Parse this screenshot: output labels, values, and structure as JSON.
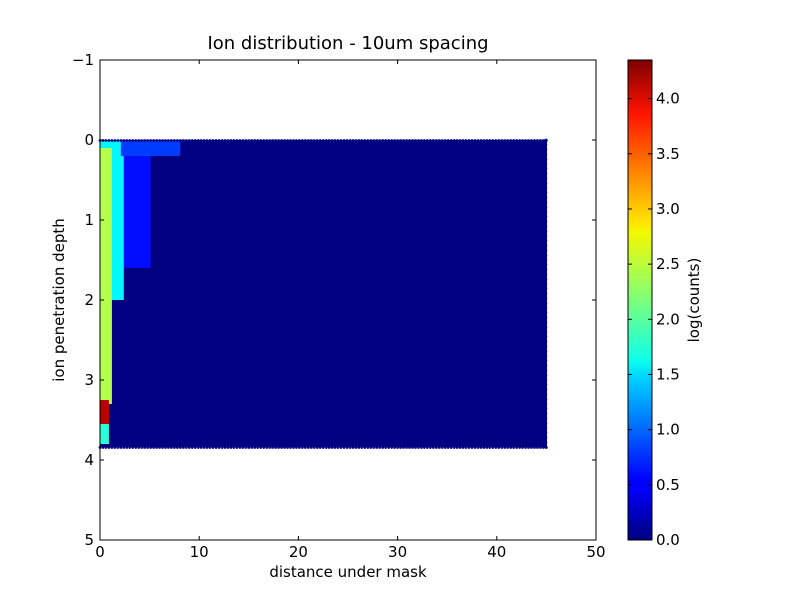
{
  "chart_data": {
    "type": "heatmap",
    "subtype": "hexbin",
    "title": "Ion distribution - 10um spacing",
    "xlabel": "distance under mask",
    "ylabel": "ion penetration depth",
    "xlim": [
      0,
      50
    ],
    "ylim": [
      -1,
      5
    ],
    "y_inverted": true,
    "grid": false,
    "x_ticks": [
      0,
      10,
      20,
      30,
      40,
      50
    ],
    "x_tick_labels": [
      "0",
      "10",
      "20",
      "30",
      "40",
      "50"
    ],
    "y_ticks": [
      -1,
      0,
      1,
      2,
      3,
      4,
      5
    ],
    "y_tick_labels": [
      "−1",
      "0",
      "1",
      "2",
      "3",
      "4",
      "5"
    ],
    "data_extent": {
      "x": [
        0,
        45
      ],
      "y": [
        0,
        3.85
      ]
    },
    "colorbar": {
      "label": "log(counts)",
      "colormap": "jet",
      "vmin": 0.0,
      "vmax": 4.35,
      "ticks": [
        0.0,
        0.5,
        1.0,
        1.5,
        2.0,
        2.5,
        3.0,
        3.5,
        4.0
      ],
      "tick_labels": [
        "0.0",
        "0.5",
        "1.0",
        "1.5",
        "2.0",
        "2.5",
        "3.0",
        "3.5",
        "4.0"
      ]
    },
    "regions": [
      {
        "x": [
          0,
          45
        ],
        "y": [
          0,
          3.85
        ],
        "value": 0.0
      },
      {
        "x": [
          0,
          2
        ],
        "y": [
          0,
          0.25
        ],
        "value": 1.6
      },
      {
        "x": [
          2,
          8
        ],
        "y": [
          0,
          0.2
        ],
        "value": 0.8
      },
      {
        "x": [
          0,
          1.2
        ],
        "y": [
          0.1,
          3.3
        ],
        "value": 2.4
      },
      {
        "x": [
          1.2,
          2.5
        ],
        "y": [
          0.2,
          2.0
        ],
        "value": 1.6
      },
      {
        "x": [
          2.5,
          5
        ],
        "y": [
          0.2,
          1.6
        ],
        "value": 0.6
      },
      {
        "x": [
          0,
          1.0
        ],
        "y": [
          3.25,
          3.55
        ],
        "value": 4.1
      },
      {
        "x": [
          0,
          1.0
        ],
        "y": [
          3.55,
          3.8
        ],
        "value": 1.8
      }
    ]
  }
}
